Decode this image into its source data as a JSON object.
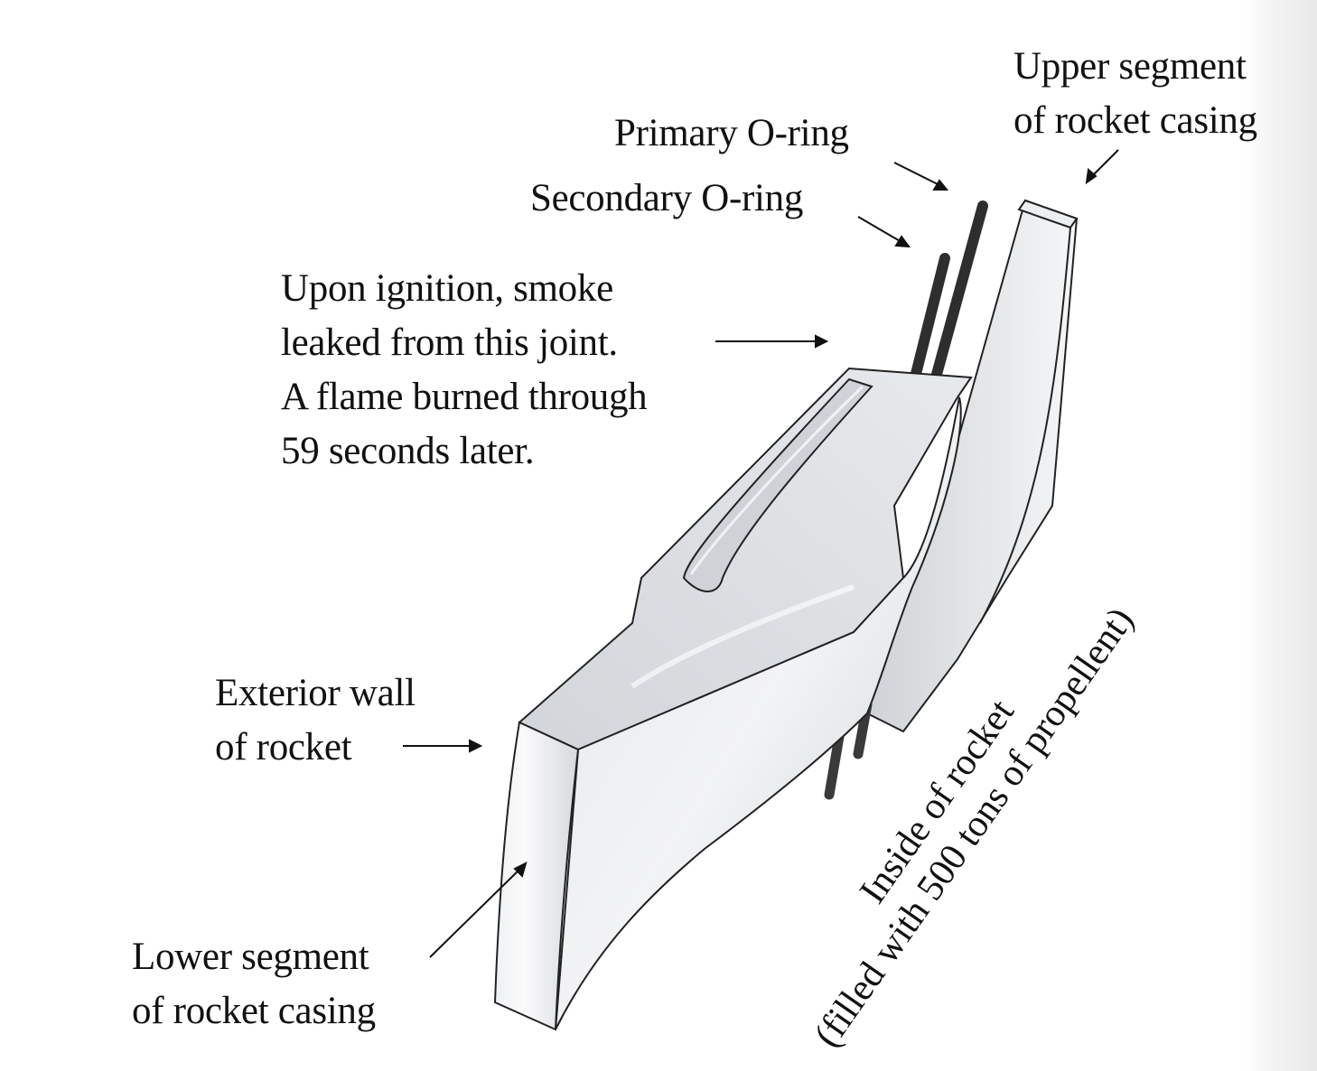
{
  "labels": {
    "upper_segment": [
      "Upper segment",
      "of rocket casing"
    ],
    "primary_oring": "Primary O-ring",
    "secondary_oring": "Secondary O-ring",
    "smoke_note": [
      "Upon ignition, smoke",
      "leaked from this joint.",
      "A flame burned through",
      "59 seconds later."
    ],
    "exterior_wall": [
      "Exterior wall",
      "of rocket"
    ],
    "lower_segment": [
      "Lower segment",
      "of rocket casing"
    ],
    "inside_rocket": [
      "Inside of rocket",
      "(filled with 500 tons of propellent)"
    ]
  },
  "colors": {
    "casing_light": "#f4f5f7",
    "casing_mid": "#dfe1e4",
    "casing_dark": "#c4c7cb",
    "oring": "#3a3a3a",
    "stroke": "#222222"
  }
}
